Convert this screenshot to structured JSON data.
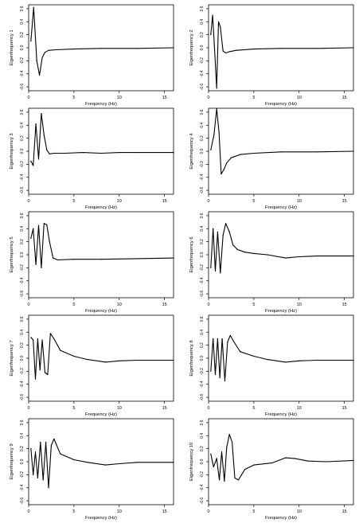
{
  "x_axis": {
    "label": "Frequency (Hz)",
    "ticks": [
      0,
      5,
      10,
      15
    ],
    "range": [
      0,
      16
    ]
  },
  "y_axis": {
    "ticks": [
      "-0.6",
      "-0.4",
      "-0.2",
      "0.0",
      "0.2",
      "0.4",
      "0.6"
    ],
    "range": [
      -0.66,
      0.66
    ]
  },
  "line_color": "#000000",
  "chart_data": [
    {
      "type": "line",
      "ylabel": "Eigenfrequency 1",
      "xlabel": "Frequency (Hz)",
      "xlim": [
        0,
        16
      ],
      "ylim": [
        -0.66,
        0.66
      ],
      "x": [
        0.25,
        0.55,
        0.9,
        1.2,
        1.5,
        1.8,
        2.2,
        3,
        5,
        8,
        12,
        16
      ],
      "y": [
        0.1,
        0.62,
        -0.2,
        -0.42,
        -0.15,
        -0.07,
        -0.04,
        -0.03,
        -0.02,
        -0.01,
        -0.01,
        0.0
      ]
    },
    {
      "type": "line",
      "ylabel": "Eigenfrequency 2",
      "xlabel": "Frequency (Hz)",
      "xlim": [
        0,
        16
      ],
      "ylim": [
        -0.66,
        0.66
      ],
      "x": [
        0.25,
        0.45,
        0.7,
        0.9,
        1.1,
        1.3,
        1.6,
        1.9,
        2.3,
        3,
        5,
        8,
        12,
        16
      ],
      "y": [
        0.2,
        0.5,
        -0.12,
        -0.62,
        0.4,
        0.32,
        -0.05,
        -0.08,
        -0.06,
        -0.04,
        -0.02,
        -0.01,
        -0.01,
        0.0
      ]
    },
    {
      "type": "line",
      "ylabel": "Eigenfrequency 3",
      "xlabel": "Frequency (Hz)",
      "xlim": [
        0,
        16
      ],
      "ylim": [
        -0.66,
        0.66
      ],
      "x": [
        0.25,
        0.5,
        0.8,
        1.1,
        1.4,
        1.7,
        2.0,
        2.3,
        2.8,
        4,
        6,
        8,
        10,
        12,
        16
      ],
      "y": [
        -0.15,
        -0.22,
        0.42,
        -0.12,
        0.58,
        0.25,
        0.02,
        -0.04,
        -0.03,
        -0.03,
        -0.02,
        -0.03,
        -0.02,
        -0.02,
        -0.02
      ]
    },
    {
      "type": "line",
      "ylabel": "Eigenfrequency 4",
      "xlabel": "Frequency (Hz)",
      "xlim": [
        0,
        16
      ],
      "ylim": [
        -0.66,
        0.66
      ],
      "x": [
        0.25,
        0.6,
        0.9,
        1.15,
        1.4,
        1.7,
        2.0,
        2.5,
        3.5,
        5,
        8,
        12,
        16
      ],
      "y": [
        0.02,
        0.25,
        0.65,
        0.3,
        -0.35,
        -0.28,
        -0.18,
        -0.1,
        -0.05,
        -0.03,
        -0.01,
        -0.01,
        0.0
      ]
    },
    {
      "type": "line",
      "ylabel": "Eigenfrequency 5",
      "xlabel": "Frequency (Hz)",
      "xlim": [
        0,
        16
      ],
      "ylim": [
        -0.66,
        0.66
      ],
      "x": [
        0.25,
        0.5,
        0.8,
        1.1,
        1.4,
        1.7,
        2.0,
        2.3,
        2.7,
        3.2,
        5,
        8,
        12,
        16
      ],
      "y": [
        0.25,
        0.4,
        -0.15,
        0.45,
        -0.2,
        0.48,
        0.46,
        0.2,
        -0.05,
        -0.08,
        -0.07,
        -0.07,
        -0.06,
        -0.05
      ]
    },
    {
      "type": "line",
      "ylabel": "Eigenfrequency 6",
      "xlabel": "Frequency (Hz)",
      "xlim": [
        0,
        16
      ],
      "ylim": [
        -0.66,
        0.66
      ],
      "x": [
        0.25,
        0.5,
        0.75,
        1.0,
        1.3,
        1.6,
        1.9,
        2.3,
        2.7,
        3.2,
        4,
        5,
        6.5,
        8.5,
        10,
        12,
        16
      ],
      "y": [
        -0.2,
        0.4,
        -0.25,
        0.35,
        -0.28,
        0.3,
        0.48,
        0.35,
        0.15,
        0.08,
        0.04,
        0.02,
        0.0,
        -0.05,
        -0.03,
        -0.02,
        -0.02
      ]
    },
    {
      "type": "line",
      "ylabel": "Eigenfrequency 7",
      "xlabel": "Frequency (Hz)",
      "xlim": [
        0,
        16
      ],
      "ylim": [
        -0.66,
        0.66
      ],
      "x": [
        0.25,
        0.5,
        0.75,
        1.0,
        1.25,
        1.5,
        1.8,
        2.1,
        2.4,
        2.8,
        3.5,
        5,
        6.5,
        8.5,
        10,
        12,
        16
      ],
      "y": [
        0.32,
        0.28,
        -0.32,
        0.3,
        -0.18,
        0.28,
        -0.22,
        -0.25,
        0.38,
        0.3,
        0.12,
        0.03,
        -0.02,
        -0.06,
        -0.04,
        -0.03,
        -0.03
      ]
    },
    {
      "type": "line",
      "ylabel": "Eigenfrequency 8",
      "xlabel": "Frequency (Hz)",
      "xlim": [
        0,
        16
      ],
      "ylim": [
        -0.66,
        0.66
      ],
      "x": [
        0.25,
        0.5,
        0.75,
        1.0,
        1.25,
        1.5,
        1.8,
        2.1,
        2.4,
        2.8,
        3.5,
        5,
        6.5,
        8.5,
        10,
        12,
        16
      ],
      "y": [
        -0.2,
        0.3,
        -0.25,
        0.3,
        -0.3,
        0.3,
        -0.35,
        0.25,
        0.35,
        0.25,
        0.1,
        0.03,
        -0.02,
        -0.06,
        -0.04,
        -0.03,
        -0.03
      ]
    },
    {
      "type": "line",
      "ylabel": "Eigenfrequency 9",
      "xlabel": "Frequency (Hz)",
      "xlim": [
        0,
        16
      ],
      "ylim": [
        -0.66,
        0.66
      ],
      "x": [
        0.25,
        0.5,
        0.75,
        1.0,
        1.3,
        1.6,
        1.9,
        2.2,
        2.5,
        2.8,
        3.5,
        5,
        6.5,
        8.5,
        10,
        12,
        16
      ],
      "y": [
        0.2,
        -0.2,
        0.15,
        -0.25,
        0.3,
        -0.28,
        0.3,
        -0.4,
        0.25,
        0.35,
        0.12,
        0.03,
        -0.01,
        -0.05,
        -0.03,
        -0.01,
        -0.01
      ]
    },
    {
      "type": "line",
      "ylabel": "Eigenfrequency 10",
      "xlabel": "Frequency (Hz)",
      "xlim": [
        0,
        16
      ],
      "ylim": [
        -0.66,
        0.66
      ],
      "x": [
        0.25,
        0.55,
        0.9,
        1.2,
        1.45,
        1.75,
        2.0,
        2.3,
        2.6,
        2.9,
        3.3,
        4,
        5,
        7,
        8.5,
        9.5,
        11,
        13,
        16
      ],
      "y": [
        0.12,
        -0.08,
        0.05,
        -0.28,
        0.15,
        -0.3,
        0.22,
        0.42,
        0.3,
        -0.25,
        -0.28,
        -0.12,
        -0.05,
        -0.02,
        0.06,
        0.05,
        0.01,
        0.0,
        0.02
      ]
    }
  ]
}
